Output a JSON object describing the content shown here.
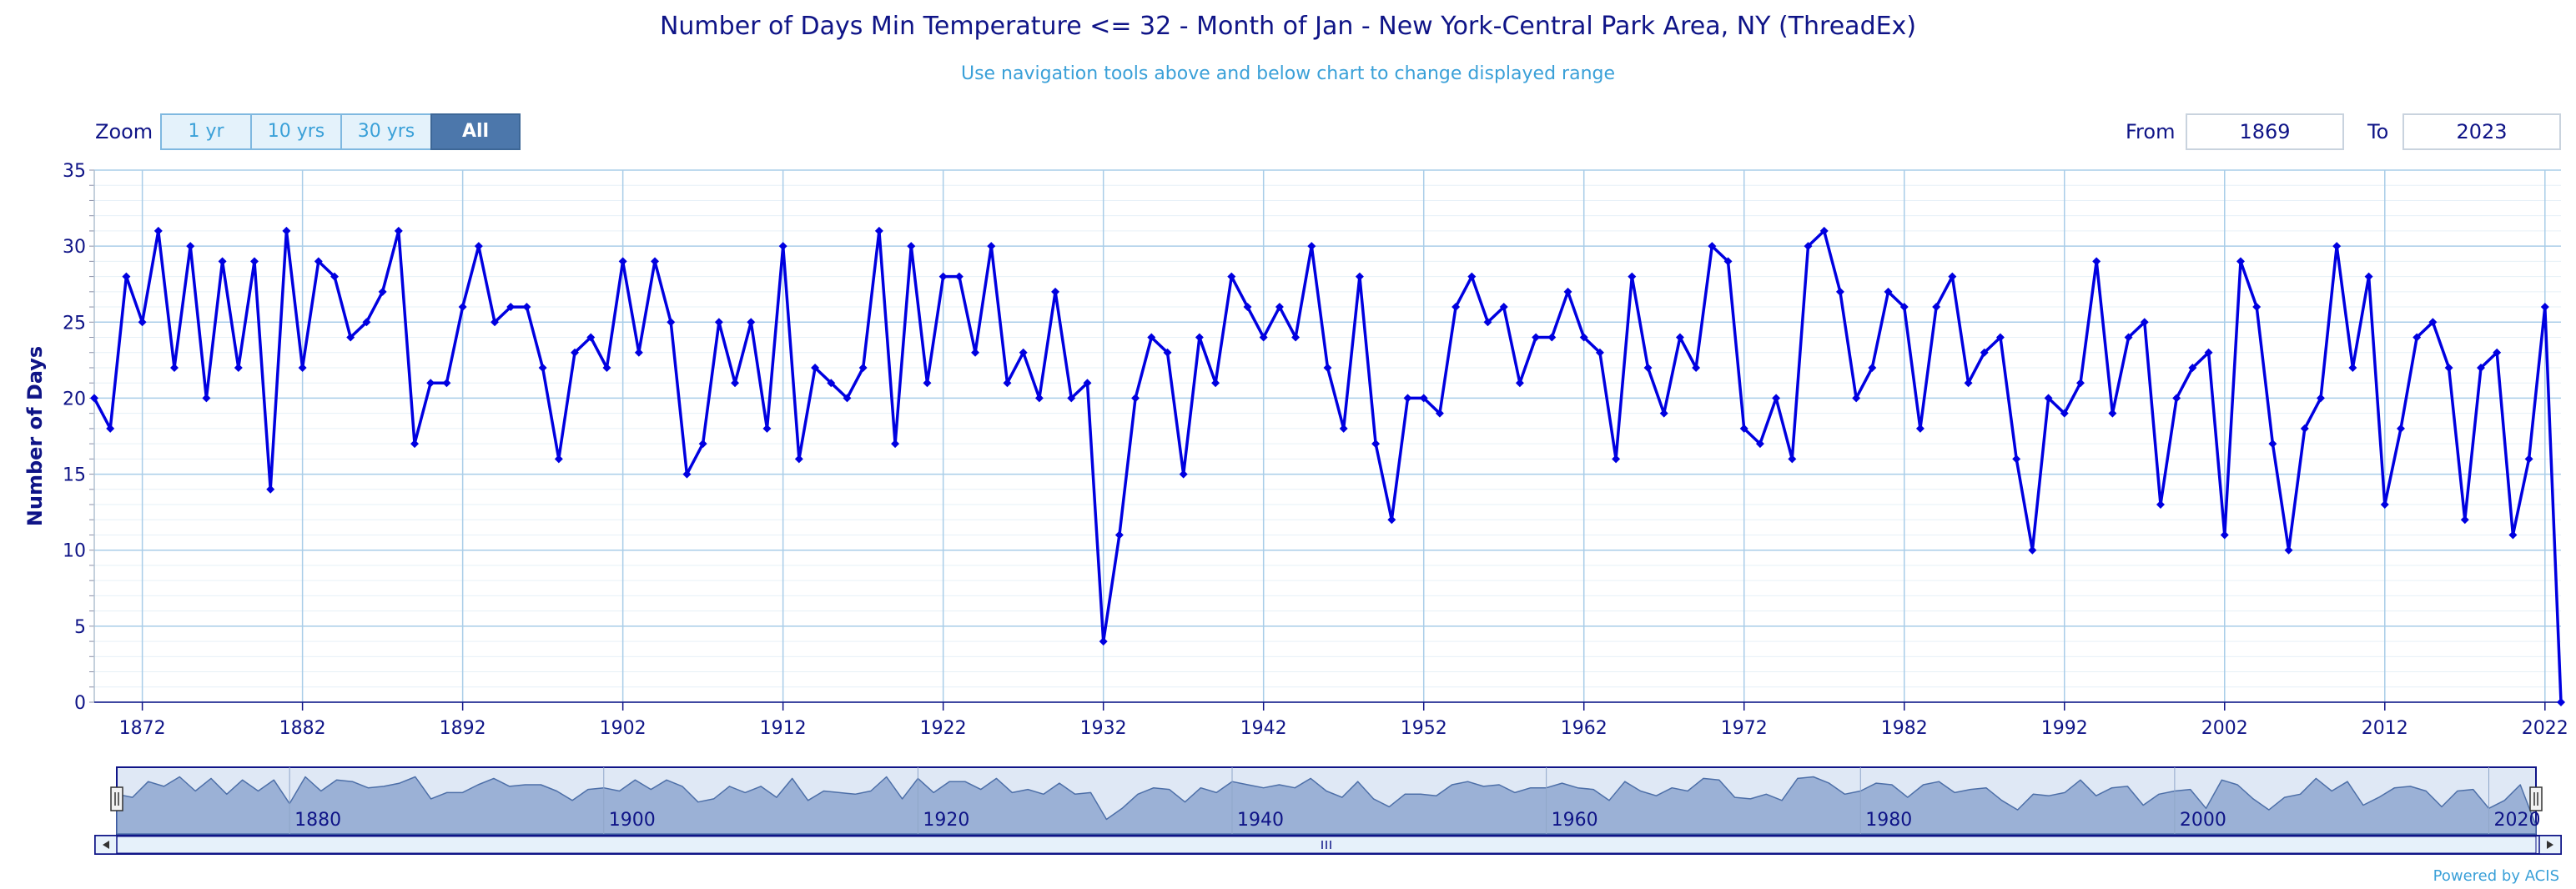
{
  "chart_data": {
    "type": "line",
    "title": "Number of Days Min Temperature <= 32 - Month of Jan - New York-Central Park Area, NY (ThreadEx)",
    "subtitle": "Use navigation tools above and below chart to change displayed range",
    "ylabel": "Number of Days",
    "xlabel": "",
    "ylim": [
      0,
      35
    ],
    "yticks": [
      0,
      5,
      10,
      15,
      20,
      25,
      30,
      35
    ],
    "xlim": [
      1869,
      2023
    ],
    "xticks": [
      1872,
      1882,
      1892,
      1902,
      1912,
      1922,
      1932,
      1942,
      1952,
      1962,
      1972,
      1982,
      1992,
      2002,
      2012,
      2022
    ],
    "grid": true,
    "line_color": "#0000e0",
    "x": [
      1869,
      1870,
      1871,
      1872,
      1873,
      1874,
      1875,
      1876,
      1877,
      1878,
      1879,
      1880,
      1881,
      1882,
      1883,
      1884,
      1885,
      1886,
      1887,
      1888,
      1889,
      1890,
      1891,
      1892,
      1893,
      1894,
      1895,
      1896,
      1897,
      1898,
      1899,
      1900,
      1901,
      1902,
      1903,
      1904,
      1905,
      1906,
      1907,
      1908,
      1909,
      1910,
      1911,
      1912,
      1913,
      1914,
      1915,
      1916,
      1917,
      1918,
      1919,
      1920,
      1921,
      1922,
      1923,
      1924,
      1925,
      1926,
      1927,
      1928,
      1929,
      1930,
      1931,
      1932,
      1933,
      1934,
      1935,
      1936,
      1937,
      1938,
      1939,
      1940,
      1941,
      1942,
      1943,
      1944,
      1945,
      1946,
      1947,
      1948,
      1949,
      1950,
      1951,
      1952,
      1953,
      1954,
      1955,
      1956,
      1957,
      1958,
      1959,
      1960,
      1961,
      1962,
      1963,
      1964,
      1965,
      1966,
      1967,
      1968,
      1969,
      1970,
      1971,
      1972,
      1973,
      1974,
      1975,
      1976,
      1977,
      1978,
      1979,
      1980,
      1981,
      1982,
      1983,
      1984,
      1985,
      1986,
      1987,
      1988,
      1989,
      1990,
      1991,
      1992,
      1993,
      1994,
      1995,
      1996,
      1997,
      1998,
      1999,
      2000,
      2001,
      2002,
      2003,
      2004,
      2005,
      2006,
      2007,
      2008,
      2009,
      2010,
      2011,
      2012,
      2013,
      2014,
      2015,
      2016,
      2017,
      2018,
      2019,
      2020,
      2021,
      2022,
      2023
    ],
    "series": [
      {
        "values": [
          20,
          18,
          28,
          25,
          31,
          22,
          30,
          20,
          29,
          22,
          29,
          14,
          31,
          22,
          29,
          28,
          24,
          25,
          27,
          31,
          17,
          21,
          21,
          26,
          30,
          25,
          26,
          26,
          22,
          16,
          23,
          24,
          22,
          29,
          23,
          29,
          25,
          15,
          17,
          25,
          21,
          25,
          18,
          30,
          16,
          22,
          21,
          20,
          22,
          31,
          17,
          30,
          21,
          28,
          28,
          23,
          30,
          21,
          23,
          20,
          27,
          20,
          21,
          4,
          11,
          20,
          24,
          23,
          15,
          24,
          21,
          28,
          26,
          24,
          26,
          24,
          30,
          22,
          18,
          28,
          17,
          12,
          20,
          20,
          19,
          26,
          28,
          25,
          26,
          21,
          24,
          24,
          27,
          24,
          23,
          16,
          28,
          22,
          19,
          24,
          22,
          30,
          29,
          18,
          17,
          20,
          16,
          30,
          31,
          27,
          20,
          22,
          27,
          26,
          18,
          26,
          28,
          21,
          23,
          24,
          16,
          10,
          20,
          19,
          21,
          29,
          19,
          24,
          25,
          13,
          20,
          22,
          23,
          11,
          29,
          26,
          17,
          10,
          18,
          20,
          30,
          22,
          28,
          13,
          18,
          24,
          25,
          22,
          12,
          22,
          23,
          11,
          16,
          26,
          0
        ]
      }
    ],
    "zoom": {
      "label": "Zoom",
      "buttons": [
        "1 yr",
        "10 yrs",
        "30 yrs",
        "All"
      ],
      "active": "All"
    },
    "range": {
      "from_label": "From",
      "from_value": "1869",
      "to_label": "To",
      "to_value": "2023"
    },
    "navigator": {
      "ticks": [
        "1880",
        "1900",
        "1920",
        "1940",
        "1960",
        "1980",
        "2000",
        "2020"
      ]
    },
    "credit": "Powered by ACIS"
  }
}
